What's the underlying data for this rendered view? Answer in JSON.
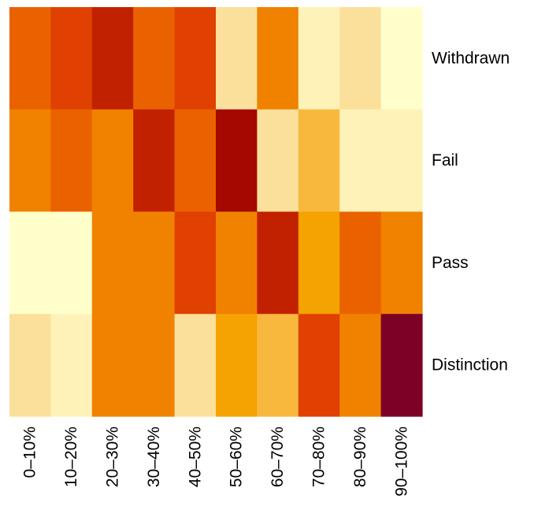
{
  "chart_data": {
    "type": "heatmap",
    "x_categories": [
      "0–10%",
      "10–20%",
      "20–30%",
      "30–40%",
      "40–50%",
      "50–60%",
      "60–70%",
      "70–80%",
      "80–90%",
      "90–100%"
    ],
    "y_categories": [
      "Withdrawn",
      "Fail",
      "Pass",
      "Distinction"
    ],
    "values": [
      [
        6,
        7,
        8,
        6,
        7,
        2,
        5,
        1,
        2,
        0
      ],
      [
        5,
        6,
        5,
        8,
        6,
        9,
        2,
        3,
        1,
        1
      ],
      [
        0,
        0,
        5,
        5,
        7,
        5,
        8,
        4,
        6,
        5
      ],
      [
        2,
        1,
        5,
        5,
        2,
        4,
        3,
        7,
        5,
        10
      ]
    ],
    "color_scale": {
      "0": "#FFFFCC",
      "1": "#FFF2B8",
      "2": "#FAE09A",
      "3": "#F8B83E",
      "4": "#F5A300",
      "5": "#F08200",
      "6": "#EA6200",
      "7": "#E04000",
      "8": "#C22100",
      "9": "#A50800",
      "10": "#7D0027"
    },
    "legend": "none",
    "grid": false
  }
}
